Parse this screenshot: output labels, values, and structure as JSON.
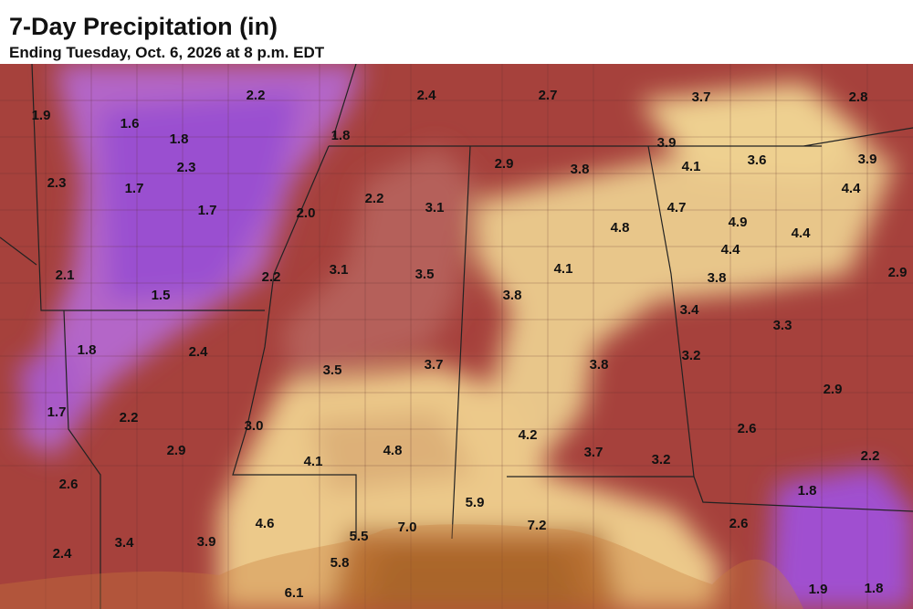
{
  "header": {
    "title": "7-Day Precipitation (in)",
    "subtitle": "Ending Tuesday, Oct. 6, 2026 at 8 p.m. EDT"
  },
  "labels": [
    "1.9",
    "1.6",
    "2.2",
    "2.4",
    "2.7",
    "3.7",
    "2.8",
    "1.8",
    "1.8",
    "3.9",
    "3.9",
    "2.3",
    "2.3",
    "2.9",
    "3.8",
    "4.1",
    "3.6",
    "1.7",
    "4.4",
    "1.7",
    "2.0",
    "2.2",
    "3.1",
    "4.7",
    "4.9",
    "4.8",
    "4.4",
    "4.4",
    "2.1",
    "2.2",
    "3.1",
    "3.5",
    "4.1",
    "3.8",
    "2.9",
    "1.5",
    "3.8",
    "3.4",
    "3.3",
    "1.8",
    "2.4",
    "3.7",
    "3.8",
    "3.2",
    "3.5",
    "1.7",
    "2.2",
    "2.9",
    "3.0",
    "2.6",
    "4.2",
    "2.9",
    "4.8",
    "3.7",
    "4.1",
    "3.2",
    "2.2",
    "2.6",
    "1.8",
    "5.9",
    "4.6",
    "5.5",
    "7.0",
    "7.2",
    "2.6",
    "3.4",
    "3.9",
    "2.4",
    "5.8",
    "6.1",
    "1.9",
    "1.8"
  ]
}
